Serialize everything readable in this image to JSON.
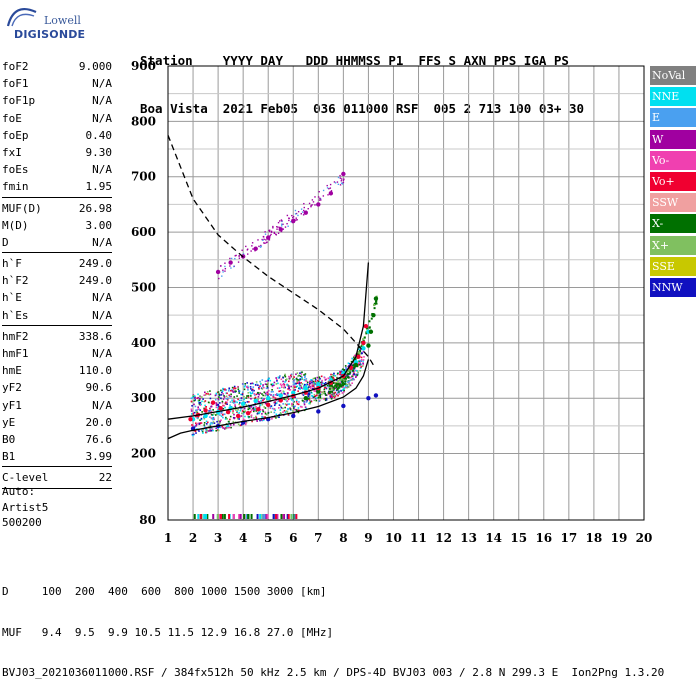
{
  "logo": {
    "line1": "Lowell",
    "line2": "DIGISONDE"
  },
  "header": {
    "line1": "Station    YYYY DAY   DDD HHMMSS P1  FFS S AXN PPS IGA PS",
    "line2": "Boa Vista  2021 Feb05  036 011000 RSF  005 2 713 100 03+ 30"
  },
  "params": [
    {
      "name": "foF2",
      "value": "9.000"
    },
    {
      "name": "foF1",
      "value": "N/A"
    },
    {
      "name": "foF1p",
      "value": "N/A"
    },
    {
      "name": "foE",
      "value": "N/A"
    },
    {
      "name": "foEp",
      "value": "0.40"
    },
    {
      "name": "fxI",
      "value": "9.30"
    },
    {
      "name": "foEs",
      "value": "N/A"
    },
    {
      "name": "fmin",
      "value": "1.95"
    },
    {
      "name": "MUF(D)",
      "value": "26.98",
      "sep": true
    },
    {
      "name": "M(D)",
      "value": "3.00"
    },
    {
      "name": "D",
      "value": "N/A"
    },
    {
      "name": "h`F",
      "value": "249.0",
      "sep": true
    },
    {
      "name": "h`F2",
      "value": "249.0"
    },
    {
      "name": "h`E",
      "value": "N/A"
    },
    {
      "name": "h`Es",
      "value": "N/A"
    },
    {
      "name": "hmF2",
      "value": "338.6",
      "sep": true
    },
    {
      "name": "hmF1",
      "value": "N/A"
    },
    {
      "name": "hmE",
      "value": "110.0"
    },
    {
      "name": "yF2",
      "value": "90.6"
    },
    {
      "name": "yF1",
      "value": "N/A"
    },
    {
      "name": "yE",
      "value": "20.0"
    },
    {
      "name": "B0",
      "value": "76.6"
    },
    {
      "name": "B1",
      "value": "3.99"
    },
    {
      "name": "C-level",
      "value": "22",
      "sep": true
    }
  ],
  "auto": {
    "line1": "Auto:",
    "line2": "Artist5",
    "line3": "500200"
  },
  "legend": [
    {
      "label": "NoVal",
      "color": "#808080"
    },
    {
      "label": "NNE",
      "color": "#00e0f0"
    },
    {
      "label": "E",
      "color": "#4aa0f0"
    },
    {
      "label": "W",
      "color": "#a000a0"
    },
    {
      "label": "Vo-",
      "color": "#f040b0"
    },
    {
      "label": "Vo+",
      "color": "#f00030"
    },
    {
      "label": "SSW",
      "color": "#f0a0a0"
    },
    {
      "label": "X-",
      "color": "#007000"
    },
    {
      "label": "X+",
      "color": "#80c060"
    },
    {
      "label": "SSE",
      "color": "#c8c800"
    },
    {
      "label": "NNW",
      "color": "#1010c0"
    }
  ],
  "footer": {
    "line1": "D     100  200  400  600  800 1000 1500 3000 [km]",
    "line2": "MUF   9.4  9.5  9.9 10.5 11.5 12.9 16.8 27.0 [MHz]",
    "line3": "BVJ03_2021036011000.RSF / 384fx512h 50 kHz 2.5 km / DPS-4D BVJ03 003 / 2.8 N 299.3 E  Ion2Png 1.3.20"
  },
  "chart_data": {
    "type": "scatter",
    "xlim": [
      1,
      20
    ],
    "ylim": [
      80,
      900
    ],
    "xticks": [
      "1",
      "2",
      "3",
      "4",
      "5",
      "6",
      "7",
      "8",
      "9",
      "10",
      "11",
      "12",
      "13",
      "14",
      "15",
      "16",
      "17",
      "18",
      "19",
      "20"
    ],
    "yticks": [
      "80",
      "200",
      "300",
      "400",
      "500",
      "600",
      "700",
      "800",
      "900"
    ],
    "grid": true,
    "series": [
      {
        "name": "W",
        "x": [
          3.0,
          3.5,
          4.0,
          4.5,
          5.0,
          5.5,
          6.0,
          6.5,
          7.0,
          7.5,
          8.0
        ],
        "y": [
          528,
          545,
          556,
          570,
          590,
          605,
          620,
          635,
          650,
          670,
          705
        ]
      },
      {
        "name": "NNE",
        "x": [
          2.0,
          2.5,
          3.0,
          3.5,
          4.0,
          4.5,
          5.0,
          5.5,
          6.0,
          6.5,
          7.0,
          7.5,
          8.0,
          8.5,
          8.8,
          9.0
        ],
        "y": [
          262,
          268,
          275,
          282,
          290,
          295,
          300,
          305,
          310,
          318,
          325,
          332,
          345,
          365,
          390,
          420
        ]
      },
      {
        "name": "X-",
        "x": [
          6.5,
          7.0,
          7.5,
          8.0,
          8.5,
          9.0,
          9.1,
          9.2,
          9.3
        ],
        "y": [
          300,
          312,
          326,
          340,
          360,
          395,
          420,
          450,
          480
        ]
      },
      {
        "name": "NNW",
        "x": [
          2.0,
          3.0,
          4.0,
          5.0,
          6.0,
          7.0,
          8.0,
          9.0,
          9.3
        ],
        "y": [
          245,
          250,
          256,
          262,
          268,
          276,
          286,
          300,
          305
        ]
      },
      {
        "name": "Vo+",
        "x": [
          1.9,
          2.2,
          2.5,
          2.8,
          3.1,
          3.4,
          3.8,
          4.2,
          4.6,
          5.0,
          5.5,
          6.0,
          6.5,
          7.0,
          7.5,
          8.0,
          8.3,
          8.6,
          8.8,
          8.9
        ],
        "y": [
          262,
          270,
          278,
          292,
          282,
          275,
          268,
          273,
          280,
          288,
          296,
          304,
          310,
          318,
          328,
          340,
          355,
          375,
          400,
          430
        ]
      }
    ],
    "profile_curve": {
      "x": [
        1.0,
        1.5,
        2.0,
        3.0,
        4.0,
        5.0,
        6.0,
        7.0,
        8.0,
        8.5,
        8.8,
        9.0
      ],
      "y": [
        227,
        237,
        242,
        250,
        258,
        265,
        274,
        285,
        302,
        318,
        340,
        370
      ]
    },
    "trace_curve": {
      "x": [
        1.0,
        2.0,
        3.0,
        4.0,
        5.0,
        6.0,
        7.0,
        8.0,
        8.5,
        8.8,
        9.0
      ],
      "y": [
        262,
        268,
        276,
        284,
        294,
        305,
        318,
        340,
        375,
        430,
        545
      ]
    },
    "virtual_height_curve": {
      "x": [
        1.0,
        2.0,
        3.0,
        4.0,
        5.0,
        6.0,
        7.0,
        8.0,
        8.5,
        9.0,
        9.2
      ],
      "y": [
        775,
        660,
        595,
        555,
        520,
        490,
        460,
        425,
        400,
        375,
        360
      ]
    }
  }
}
